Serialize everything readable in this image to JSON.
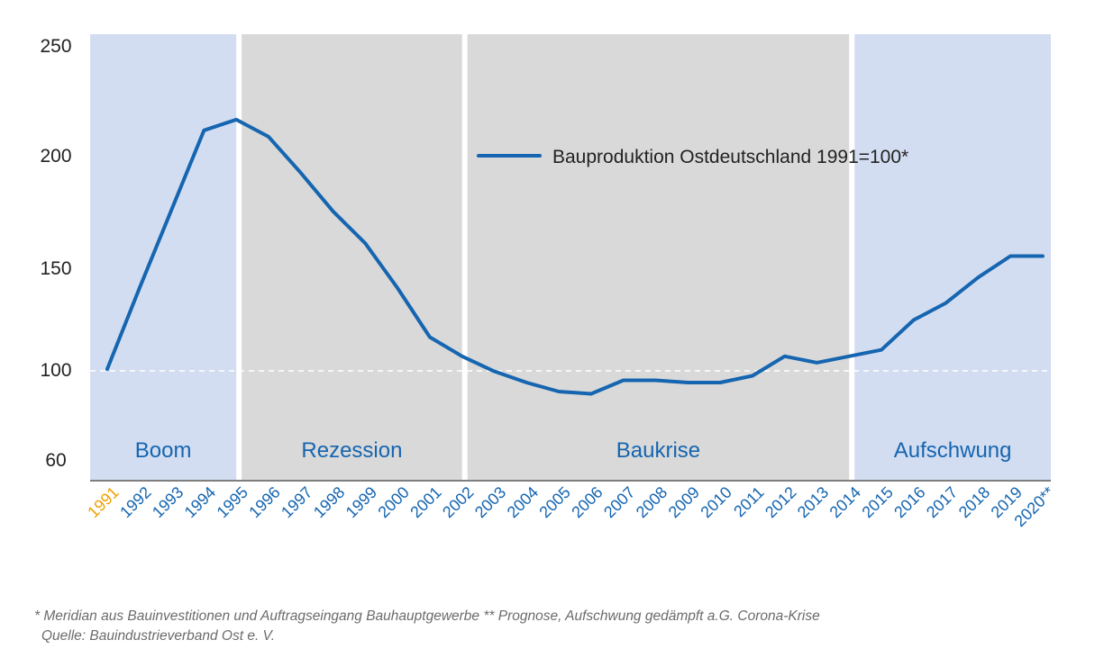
{
  "chart_data": {
    "type": "line",
    "categories": [
      "1991",
      "1992",
      "1993",
      "1994",
      "1995",
      "1996",
      "1997",
      "1998",
      "1999",
      "2000",
      "2001",
      "2002",
      "2003",
      "2004",
      "2005",
      "2006",
      "2007",
      "2008",
      "2009",
      "2010",
      "2011",
      "2012",
      "2013",
      "2014",
      "2015",
      "2016",
      "2017",
      "2018",
      "2019",
      "2020**"
    ],
    "series": [
      {
        "name": "Bauproduktion Ostdeutschland 1991=100*",
        "values": [
          100,
          138,
          175,
          212,
          217,
          209,
          192,
          174,
          159,
          138,
          115,
          106,
          99,
          94,
          90,
          89,
          95,
          95,
          94,
          94,
          97,
          106,
          103,
          106,
          109,
          123,
          131,
          143,
          153,
          153
        ]
      }
    ],
    "yticks": [
      60,
      100,
      150,
      200,
      250
    ],
    "ylim": [
      60,
      250
    ],
    "reference_line": 100,
    "phases": [
      {
        "label": "Boom",
        "start": "1991",
        "end": "1995",
        "color": "#d3ddf1"
      },
      {
        "label": "Rezession",
        "start": "1995",
        "end": "2002",
        "color": "#d9d9d9"
      },
      {
        "label": "Baukrise",
        "start": "2002",
        "end": "2014",
        "color": "#d9d9d9"
      },
      {
        "label": "Aufschwung",
        "start": "2014",
        "end": "2020**",
        "color": "#d3ddf1"
      }
    ],
    "legend_position": "top-center",
    "colors": {
      "line": "#1565b0",
      "phase_label": "#1565b0",
      "tick": "#1565b0",
      "highlight_tick": "#f0a000",
      "axis": "#555555"
    }
  },
  "footnotes": {
    "line1": "* Meridian aus Bauinvestitionen und Auftragseingang Bauhauptgewerbe ** Prognose, Aufschwung gedämpft a.G. Corona-Krise",
    "line2": "Quelle: Bauindustrieverband Ost e. V."
  }
}
